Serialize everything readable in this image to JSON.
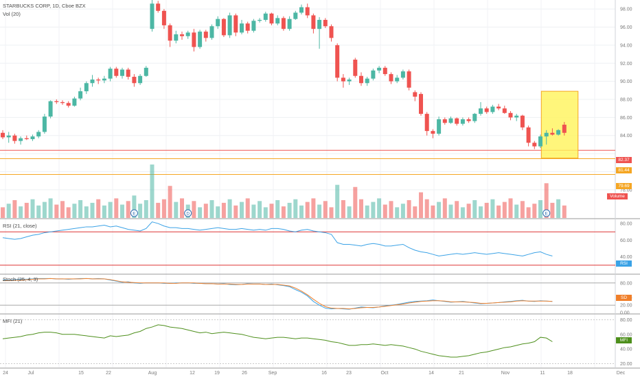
{
  "header": {
    "symbol_line": "STARBUCKS CORP, 1D, Cboe BZX",
    "volume_label": "Vol (20)"
  },
  "panes": {
    "rsi_title": "RSI (21, close)",
    "stoch_title": "Stoch (25, 4, 3)",
    "mfi_title": "MFI (21)"
  },
  "colors": {
    "up": "#4cb7a4",
    "down": "#ef5350",
    "rsi_line": "#3aa2e6",
    "stoch_k": "#3aa2e6",
    "stoch_d": "#f07f2a",
    "mfi_line": "#4d8f1b",
    "highlight_fill": "#fff45a",
    "highlight_border": "#f5a623"
  },
  "price_tags": [
    {
      "label": "82.37",
      "color": "#ef5350"
    },
    {
      "label": "81.44",
      "color": "#f5a623"
    },
    {
      "label": "79.69",
      "color": "#f5a623"
    },
    {
      "label": "Volume",
      "color": "#ef5350"
    }
  ],
  "indicator_tags": {
    "rsi": "RSI",
    "stoch": "SD",
    "mfi": "MFI"
  },
  "event_markers": [
    {
      "label": "E",
      "date": "Jul 24"
    },
    {
      "label": "D",
      "date": "Aug 6"
    },
    {
      "label": "E",
      "date": "Oct 30"
    }
  ],
  "chart_data": {
    "type": "candlestick",
    "title": "STARBUCKS CORP, 1D, Cboe BZX",
    "price_axis": {
      "range": [
        77,
        99
      ],
      "ticks": [
        "98.00",
        "96.00",
        "94.00",
        "92.00",
        "90.00",
        "88.00",
        "86.00",
        "84.00",
        "78.00"
      ]
    },
    "x_axis": {
      "tick_labels": [
        "24",
        "Jul",
        "15",
        "22",
        "Aug",
        "12",
        "19",
        "26",
        "Sep",
        "16",
        "23",
        "Oct",
        "14",
        "21",
        "Nov",
        "11",
        "18",
        "Dec"
      ]
    },
    "horizontal_levels": [
      {
        "value": 82.37,
        "color": "#ef5350"
      },
      {
        "value": 81.44,
        "color": "#f5a623"
      },
      {
        "value": 79.69,
        "color": "#f5a623"
      }
    ],
    "highlight_box": {
      "from": "Oct 28",
      "to": "Nov 4",
      "top": 88.9,
      "bottom": 81.5
    },
    "candles": [
      {
        "d": "Jun 21",
        "o": 84.3,
        "h": 84.6,
        "l": 83.6,
        "c": 83.8
      },
      {
        "d": "Jun 24",
        "o": 83.8,
        "h": 84.4,
        "l": 83.2,
        "c": 84.0
      },
      {
        "d": "Jun 25",
        "o": 84.0,
        "h": 84.2,
        "l": 83.1,
        "c": 83.4
      },
      {
        "d": "Jun 26",
        "o": 83.4,
        "h": 83.9,
        "l": 83.0,
        "c": 83.7
      },
      {
        "d": "Jun 27",
        "o": 83.7,
        "h": 84.0,
        "l": 83.5,
        "c": 83.6
      },
      {
        "d": "Jun 28",
        "o": 83.6,
        "h": 84.1,
        "l": 83.4,
        "c": 83.9
      },
      {
        "d": "Jul 1",
        "o": 83.9,
        "h": 84.6,
        "l": 83.7,
        "c": 84.4
      },
      {
        "d": "Jul 2",
        "o": 84.4,
        "h": 86.4,
        "l": 84.2,
        "c": 86.1
      },
      {
        "d": "Jul 3",
        "o": 86.1,
        "h": 87.9,
        "l": 85.9,
        "c": 87.8
      },
      {
        "d": "Jul 5",
        "o": 87.8,
        "h": 88.0,
        "l": 87.5,
        "c": 87.7
      },
      {
        "d": "Jul 8",
        "o": 87.7,
        "h": 87.9,
        "l": 87.4,
        "c": 87.6
      },
      {
        "d": "Jul 9",
        "o": 87.6,
        "h": 87.8,
        "l": 87.1,
        "c": 87.3
      },
      {
        "d": "Jul 10",
        "o": 87.3,
        "h": 88.3,
        "l": 87.2,
        "c": 88.1
      },
      {
        "d": "Jul 11",
        "o": 88.1,
        "h": 89.3,
        "l": 87.9,
        "c": 88.9
      },
      {
        "d": "Jul 12",
        "o": 88.9,
        "h": 90.0,
        "l": 88.6,
        "c": 89.8
      },
      {
        "d": "Jul 15",
        "o": 89.8,
        "h": 90.7,
        "l": 89.4,
        "c": 90.2
      },
      {
        "d": "Jul 16",
        "o": 90.2,
        "h": 90.4,
        "l": 89.7,
        "c": 90.1
      },
      {
        "d": "Jul 17",
        "o": 90.1,
        "h": 90.6,
        "l": 89.8,
        "c": 90.3
      },
      {
        "d": "Jul 18",
        "o": 90.3,
        "h": 91.6,
        "l": 90.0,
        "c": 91.4
      },
      {
        "d": "Jul 19",
        "o": 91.4,
        "h": 91.6,
        "l": 90.4,
        "c": 90.6
      },
      {
        "d": "Jul 22",
        "o": 90.6,
        "h": 91.5,
        "l": 90.3,
        "c": 91.3
      },
      {
        "d": "Jul 23",
        "o": 91.3,
        "h": 91.5,
        "l": 90.2,
        "c": 90.5
      },
      {
        "d": "Jul 24",
        "o": 90.5,
        "h": 90.8,
        "l": 89.4,
        "c": 89.8
      },
      {
        "d": "Jul 25",
        "o": 89.8,
        "h": 90.8,
        "l": 89.6,
        "c": 90.6
      },
      {
        "d": "Jul 26",
        "o": 90.6,
        "h": 91.7,
        "l": 90.5,
        "c": 91.5
      },
      {
        "d": "Jul 29",
        "o": 95.8,
        "h": 99.0,
        "l": 95.5,
        "c": 98.6
      },
      {
        "d": "Jul 30",
        "o": 98.6,
        "h": 98.9,
        "l": 97.6,
        "c": 97.8
      },
      {
        "d": "Jul 31",
        "o": 97.8,
        "h": 98.0,
        "l": 95.8,
        "c": 96.2
      },
      {
        "d": "Aug 1",
        "o": 96.2,
        "h": 96.4,
        "l": 93.8,
        "c": 94.5
      },
      {
        "d": "Aug 2",
        "o": 94.5,
        "h": 95.6,
        "l": 94.2,
        "c": 95.2
      },
      {
        "d": "Aug 5",
        "o": 95.2,
        "h": 95.5,
        "l": 94.6,
        "c": 95.0
      },
      {
        "d": "Aug 6",
        "o": 95.0,
        "h": 95.6,
        "l": 94.7,
        "c": 95.4
      },
      {
        "d": "Aug 7",
        "o": 95.4,
        "h": 95.8,
        "l": 93.3,
        "c": 93.8
      },
      {
        "d": "Aug 8",
        "o": 93.8,
        "h": 95.7,
        "l": 93.6,
        "c": 95.5
      },
      {
        "d": "Aug 9",
        "o": 95.5,
        "h": 95.7,
        "l": 94.4,
        "c": 94.8
      },
      {
        "d": "Aug 12",
        "o": 94.8,
        "h": 96.3,
        "l": 94.6,
        "c": 96.1
      },
      {
        "d": "Aug 13",
        "o": 96.1,
        "h": 97.2,
        "l": 95.8,
        "c": 96.9
      },
      {
        "d": "Aug 14",
        "o": 96.9,
        "h": 97.0,
        "l": 94.9,
        "c": 95.1
      },
      {
        "d": "Aug 15",
        "o": 95.1,
        "h": 97.6,
        "l": 94.8,
        "c": 97.3
      },
      {
        "d": "Aug 16",
        "o": 97.3,
        "h": 97.5,
        "l": 95.0,
        "c": 95.4
      },
      {
        "d": "Aug 19",
        "o": 95.4,
        "h": 96.8,
        "l": 95.2,
        "c": 96.4
      },
      {
        "d": "Aug 20",
        "o": 96.4,
        "h": 96.6,
        "l": 95.3,
        "c": 95.6
      },
      {
        "d": "Aug 21",
        "o": 95.6,
        "h": 96.9,
        "l": 95.4,
        "c": 96.7
      },
      {
        "d": "Aug 22",
        "o": 96.7,
        "h": 97.0,
        "l": 96.5,
        "c": 96.8
      },
      {
        "d": "Aug 23",
        "o": 96.8,
        "h": 97.7,
        "l": 96.6,
        "c": 97.5
      },
      {
        "d": "Aug 26",
        "o": 97.5,
        "h": 97.6,
        "l": 96.2,
        "c": 96.4
      },
      {
        "d": "Aug 27",
        "o": 96.4,
        "h": 97.3,
        "l": 96.2,
        "c": 97.0
      },
      {
        "d": "Aug 28",
        "o": 97.0,
        "h": 97.2,
        "l": 95.6,
        "c": 95.8
      },
      {
        "d": "Aug 29",
        "o": 95.8,
        "h": 97.2,
        "l": 95.6,
        "c": 96.9
      },
      {
        "d": "Aug 30",
        "o": 96.9,
        "h": 97.8,
        "l": 96.8,
        "c": 97.6
      },
      {
        "d": "Sep 3",
        "o": 97.6,
        "h": 98.5,
        "l": 97.4,
        "c": 98.2
      },
      {
        "d": "Sep 4",
        "o": 98.2,
        "h": 98.6,
        "l": 97.0,
        "c": 97.3
      },
      {
        "d": "Sep 5",
        "o": 97.3,
        "h": 97.5,
        "l": 95.3,
        "c": 95.8
      },
      {
        "d": "Sep 6",
        "o": 95.8,
        "h": 97.1,
        "l": 93.6,
        "c": 96.8
      },
      {
        "d": "Sep 9",
        "o": 96.8,
        "h": 97.0,
        "l": 95.9,
        "c": 96.1
      },
      {
        "d": "Sep 10",
        "o": 96.1,
        "h": 96.3,
        "l": 94.4,
        "c": 94.8
      },
      {
        "d": "Sep 11",
        "o": 94.0,
        "h": 94.2,
        "l": 90.0,
        "c": 90.4
      },
      {
        "d": "Sep 12",
        "o": 90.4,
        "h": 90.8,
        "l": 89.3,
        "c": 90.0
      },
      {
        "d": "Sep 13",
        "o": 90.0,
        "h": 90.4,
        "l": 89.6,
        "c": 90.2
      },
      {
        "d": "Sep 16",
        "o": 92.4,
        "h": 92.6,
        "l": 90.4,
        "c": 90.6
      },
      {
        "d": "Sep 17",
        "o": 90.6,
        "h": 91.0,
        "l": 89.5,
        "c": 89.8
      },
      {
        "d": "Sep 18",
        "o": 89.8,
        "h": 90.5,
        "l": 89.5,
        "c": 90.3
      },
      {
        "d": "Sep 19",
        "o": 90.3,
        "h": 91.4,
        "l": 90.1,
        "c": 91.2
      },
      {
        "d": "Sep 20",
        "o": 91.2,
        "h": 91.7,
        "l": 90.9,
        "c": 91.5
      },
      {
        "d": "Sep 23",
        "o": 91.5,
        "h": 91.7,
        "l": 90.6,
        "c": 90.8
      },
      {
        "d": "Sep 24",
        "o": 90.8,
        "h": 91.0,
        "l": 89.7,
        "c": 90.0
      },
      {
        "d": "Sep 25",
        "o": 90.0,
        "h": 90.7,
        "l": 89.8,
        "c": 90.4
      },
      {
        "d": "Sep 26",
        "o": 90.4,
        "h": 91.3,
        "l": 90.2,
        "c": 91.1
      },
      {
        "d": "Sep 27",
        "o": 91.1,
        "h": 91.3,
        "l": 89.0,
        "c": 89.3
      },
      {
        "d": "Sep 30",
        "o": 88.8,
        "h": 89.0,
        "l": 87.8,
        "c": 88.3
      },
      {
        "d": "Oct 1",
        "o": 88.6,
        "h": 88.8,
        "l": 86.2,
        "c": 86.4
      },
      {
        "d": "Oct 2",
        "o": 86.4,
        "h": 86.6,
        "l": 84.0,
        "c": 84.5
      },
      {
        "d": "Oct 3",
        "o": 84.5,
        "h": 84.7,
        "l": 83.7,
        "c": 84.2
      },
      {
        "d": "Oct 4",
        "o": 84.2,
        "h": 86.1,
        "l": 84.0,
        "c": 85.8
      },
      {
        "d": "Oct 7",
        "o": 85.8,
        "h": 86.0,
        "l": 85.2,
        "c": 85.4
      },
      {
        "d": "Oct 8",
        "o": 85.4,
        "h": 86.1,
        "l": 85.3,
        "c": 85.9
      },
      {
        "d": "Oct 9",
        "o": 85.9,
        "h": 86.0,
        "l": 85.1,
        "c": 85.3
      },
      {
        "d": "Oct 10",
        "o": 85.3,
        "h": 86.0,
        "l": 85.1,
        "c": 85.8
      },
      {
        "d": "Oct 11",
        "o": 85.8,
        "h": 86.0,
        "l": 85.4,
        "c": 85.6
      },
      {
        "d": "Oct 14",
        "o": 85.6,
        "h": 86.5,
        "l": 85.4,
        "c": 86.4
      },
      {
        "d": "Oct 15",
        "o": 86.4,
        "h": 87.7,
        "l": 86.2,
        "c": 87.0
      },
      {
        "d": "Oct 16",
        "o": 87.0,
        "h": 87.2,
        "l": 86.4,
        "c": 86.6
      },
      {
        "d": "Oct 17",
        "o": 86.6,
        "h": 87.4,
        "l": 86.4,
        "c": 87.2
      },
      {
        "d": "Oct 18",
        "o": 87.2,
        "h": 87.5,
        "l": 86.8,
        "c": 87.0
      },
      {
        "d": "Oct 21",
        "o": 87.0,
        "h": 87.3,
        "l": 86.4,
        "c": 86.5
      },
      {
        "d": "Oct 22",
        "o": 86.5,
        "h": 86.7,
        "l": 85.7,
        "c": 86.0
      },
      {
        "d": "Oct 23",
        "o": 86.0,
        "h": 86.4,
        "l": 85.6,
        "c": 86.2
      },
      {
        "d": "Oct 24",
        "o": 86.2,
        "h": 86.3,
        "l": 84.6,
        "c": 84.9
      },
      {
        "d": "Oct 25",
        "o": 84.9,
        "h": 85.1,
        "l": 82.8,
        "c": 83.2
      },
      {
        "d": "Oct 28",
        "o": 83.2,
        "h": 83.4,
        "l": 82.5,
        "c": 82.8
      },
      {
        "d": "Oct 29",
        "o": 82.8,
        "h": 84.1,
        "l": 82.6,
        "c": 83.9
      },
      {
        "d": "Oct 30",
        "o": 83.9,
        "h": 84.6,
        "l": 83.0,
        "c": 84.3
      },
      {
        "d": "Oct 31",
        "o": 84.3,
        "h": 84.8,
        "l": 84.0,
        "c": 84.1
      },
      {
        "d": "Nov 1",
        "o": 84.1,
        "h": 84.7,
        "l": 84.0,
        "c": 84.6
      },
      {
        "d": "Nov 4",
        "o": 85.2,
        "h": 85.5,
        "l": 84.0,
        "c": 84.3
      }
    ],
    "volume_bars": [
      {
        "d": "Jul 24",
        "v": 0.42,
        "color": "up"
      },
      {
        "d": "Jul 29",
        "v": 1.0,
        "color": "up"
      },
      {
        "d": "Aug 1",
        "v": 0.6,
        "color": "down"
      },
      {
        "d": "Sep 11",
        "v": 0.62,
        "color": "up"
      },
      {
        "d": "Sep 16",
        "v": 0.58,
        "color": "down"
      },
      {
        "d": "Oct 1",
        "v": 0.48,
        "color": "down"
      },
      {
        "d": "Oct 30",
        "v": 0.65,
        "color": "down"
      }
    ],
    "rsi": {
      "name": "RSI (21, close)",
      "range": [
        20,
        85
      ],
      "ticks": [
        "80.00",
        "60.00",
        "40.00"
      ],
      "bands": [
        70,
        30
      ],
      "values": [
        63,
        62,
        61,
        62,
        64,
        66,
        67,
        69,
        70,
        71,
        72,
        73,
        74,
        75,
        76,
        76,
        77,
        78,
        76,
        77,
        75,
        73,
        72,
        71,
        74,
        82,
        80,
        77,
        75,
        75,
        74,
        74,
        73,
        72,
        73,
        74,
        75,
        74,
        73,
        73,
        74,
        73,
        72,
        73,
        72,
        74,
        74,
        73,
        71,
        70,
        72,
        73,
        71,
        70,
        69,
        67,
        57,
        55,
        55,
        54,
        53,
        55,
        56,
        55,
        53,
        53,
        54,
        55,
        51,
        48,
        46,
        45,
        43,
        41,
        42,
        43,
        44,
        43,
        44,
        45,
        44,
        43,
        44,
        45,
        44,
        43,
        42,
        41,
        43,
        45,
        46,
        43,
        41
      ]
    },
    "stochastic": {
      "name": "Stoch (25, 4, 3)",
      "ticks": [
        "80.00",
        "40.00",
        "20.00",
        "0.00"
      ],
      "k": [
        88,
        87,
        89,
        90,
        90,
        91,
        92,
        92,
        92,
        91,
        91,
        90,
        91,
        92,
        92,
        91,
        92,
        91,
        88,
        85,
        82,
        83,
        80,
        79,
        80,
        80,
        80,
        79,
        79,
        80,
        80,
        80,
        79,
        79,
        78,
        78,
        77,
        78,
        76,
        75,
        76,
        78,
        77,
        77,
        76,
        77,
        75,
        73,
        70,
        62,
        55,
        45,
        30,
        20,
        12,
        10,
        11,
        10,
        9,
        12,
        15,
        14,
        13,
        15,
        18,
        20,
        22,
        25,
        28,
        30,
        31,
        32,
        34,
        32,
        30,
        28,
        29,
        30,
        28,
        26,
        24,
        25,
        26,
        27,
        29,
        30,
        32,
        33,
        31,
        30,
        32,
        31,
        30
      ],
      "d": [
        86,
        86,
        87,
        88,
        89,
        90,
        91,
        91,
        92,
        91,
        91,
        91,
        91,
        91,
        92,
        91,
        91,
        91,
        89,
        86,
        83,
        82,
        81,
        80,
        80,
        80,
        80,
        80,
        79,
        79,
        80,
        80,
        80,
        79,
        78,
        78,
        77,
        77,
        77,
        76,
        76,
        77,
        77,
        77,
        76,
        76,
        76,
        74,
        72,
        66,
        58,
        48,
        36,
        25,
        16,
        12,
        11,
        11,
        10,
        11,
        13,
        14,
        14,
        15,
        17,
        19,
        21,
        23,
        26,
        28,
        30,
        31,
        32,
        32,
        31,
        29,
        29,
        29,
        28,
        27,
        25,
        25,
        26,
        27,
        28,
        29,
        31,
        32,
        31,
        31,
        31,
        31,
        30
      ]
    },
    "mfi": {
      "name": "MFI (21)",
      "ticks": [
        "80.00",
        "60.00",
        "40.00",
        "20.00"
      ],
      "values": [
        54,
        55,
        56,
        57,
        59,
        60,
        62,
        63,
        63,
        62,
        60,
        60,
        60,
        59,
        58,
        57,
        56,
        55,
        58,
        57,
        58,
        59,
        62,
        64,
        68,
        70,
        73,
        72,
        70,
        69,
        68,
        66,
        64,
        62,
        63,
        61,
        62,
        63,
        62,
        61,
        60,
        58,
        56,
        55,
        54,
        55,
        56,
        56,
        55,
        54,
        55,
        55,
        54,
        53,
        52,
        50,
        49,
        47,
        45,
        45,
        46,
        46,
        47,
        46,
        45,
        46,
        45,
        44,
        42,
        40,
        37,
        35,
        33,
        31,
        30,
        29,
        29,
        30,
        31,
        33,
        35,
        36,
        38,
        40,
        42,
        43,
        45,
        47,
        48,
        50,
        56,
        55,
        50
      ]
    }
  }
}
